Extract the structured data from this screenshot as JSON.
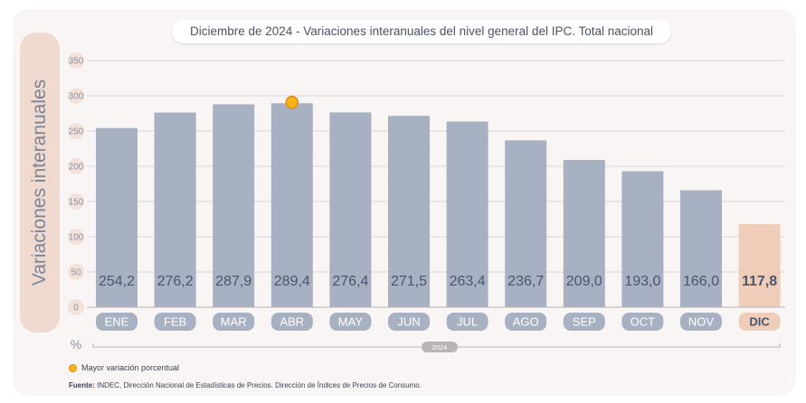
{
  "title": "Diciembre de 2024 - Variaciones interanuales del nivel general del IPC. Total nacional",
  "legend": {
    "marker_label": "Mayor variación porcentual"
  },
  "source": {
    "label": "Fuente:",
    "text": "INDEC, Dirección Nacional de Estadísticas de Precios. Dirección de Índices de Precios de Consumo."
  },
  "colors": {
    "bar": "#a7b1c2",
    "bar_highlight": "#efcdb9",
    "tab": "#a7b1c2",
    "tab_highlight": "#efcdb9",
    "marker": "#f5b417",
    "value_text": "#4a5570",
    "tab_text": "#ffffff"
  },
  "chart_data": {
    "type": "bar",
    "title": "Diciembre de 2024 - Variaciones interanuales del nivel general del IPC. Total nacional",
    "ylabel": "Variaciones interanuales",
    "yunit": "%",
    "xgroup_label": "2024",
    "ylim": [
      0,
      350
    ],
    "yticks": [
      0,
      50,
      100,
      150,
      200,
      250,
      300,
      350
    ],
    "grid": true,
    "categories": [
      "ENE",
      "FEB",
      "MAR",
      "ABR",
      "MAY",
      "JUN",
      "JUL",
      "AGO",
      "SEP",
      "OCT",
      "NOV",
      "DIC"
    ],
    "values": [
      254.2,
      276.2,
      287.9,
      289.4,
      276.4,
      271.5,
      263.4,
      236.7,
      209.0,
      193.0,
      166.0,
      117.8
    ],
    "value_labels": [
      "254,2",
      "276,2",
      "287,9",
      "289,4",
      "276,4",
      "271,5",
      "263,4",
      "236,7",
      "209,0",
      "193,0",
      "166,0",
      "117,8"
    ],
    "highlight_category": "DIC",
    "max_marker_category": "ABR"
  }
}
